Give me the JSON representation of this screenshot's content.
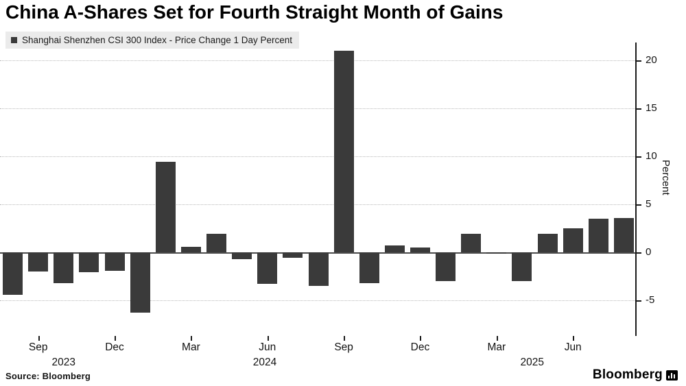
{
  "title": "China A-Shares Set for Fourth Straight Month of Gains",
  "legend": {
    "label": "Shanghai Shenzhen CSI 300 Index - Price Change 1 Day Percent"
  },
  "source_note": "Source: Bloomberg",
  "branding": {
    "wordmark": "Bloomberg"
  },
  "colors": {
    "bar": "#3a3a3a",
    "legend_bg": "#ebebeb",
    "grid": "#b8b8b8",
    "zero_line": "#4a4a4a",
    "axis": "#1a1a1a"
  },
  "chart_data": {
    "type": "bar",
    "title": "China A-Shares Set for Fourth Straight Month of Gains",
    "series_name": "Shanghai Shenzhen CSI 300 Index - Price Change 1 Day Percent",
    "unit": "percent",
    "categories": [
      "Aug 2023",
      "Sep 2023",
      "Oct 2023",
      "Nov 2023",
      "Dec 2023",
      "Jan 2024",
      "Feb 2024",
      "Mar 2024",
      "Apr 2024",
      "May 2024",
      "Jun 2024",
      "Jul 2024",
      "Aug 2024",
      "Sep 2024",
      "Oct 2024",
      "Nov 2024",
      "Dec 2024",
      "Jan 2025",
      "Feb 2025",
      "Mar 2025",
      "Apr 2025",
      "May 2025",
      "Jun 2025",
      "Jul 2025",
      "Aug 2025"
    ],
    "values": [
      -4.4,
      -2.0,
      -3.2,
      -2.1,
      -1.9,
      -6.3,
      9.4,
      0.6,
      1.9,
      -0.7,
      -3.3,
      -0.6,
      -3.5,
      21.0,
      -3.2,
      0.7,
      0.5,
      -3.0,
      1.9,
      -0.1,
      -3.0,
      1.9,
      2.5,
      3.5,
      3.6
    ],
    "ylabel": "Percent",
    "ylim": [
      -8.5,
      22
    ],
    "yticks": [
      -5,
      0,
      5,
      10,
      15,
      20
    ],
    "xticks": [
      {
        "index": 1,
        "label": "Sep"
      },
      {
        "index": 4,
        "label": "Dec"
      },
      {
        "index": 7,
        "label": "Mar"
      },
      {
        "index": 10,
        "label": "Jun"
      },
      {
        "index": 13,
        "label": "Sep"
      },
      {
        "index": 16,
        "label": "Dec"
      },
      {
        "index": 19,
        "label": "Mar"
      },
      {
        "index": 22,
        "label": "Jun"
      }
    ],
    "year_labels": [
      {
        "index": 2.0,
        "label": "2023"
      },
      {
        "index": 9.9,
        "label": "2024"
      },
      {
        "index": 20.4,
        "label": "2025"
      }
    ],
    "bar_color": "#3a3a3a",
    "grid": "horizontal",
    "legend_position": "top-left",
    "value_axis_side": "right"
  }
}
